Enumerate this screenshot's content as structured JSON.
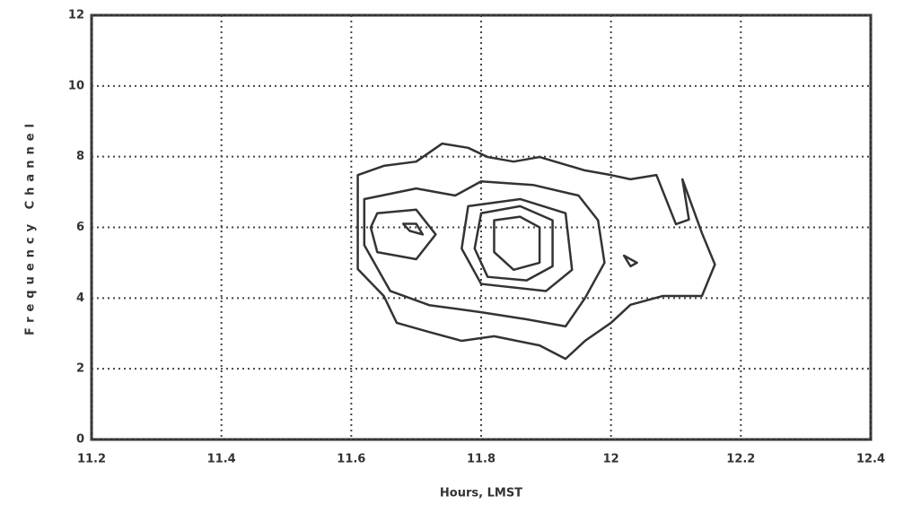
{
  "chart_data": {
    "type": "contour",
    "xlabel": "Hours, LMST",
    "ylabel": "Frequency Channel",
    "xlim": [
      11.2,
      12.4
    ],
    "xticks": [
      11.2,
      11.4,
      11.6,
      11.8,
      12,
      12.2,
      12.4
    ],
    "ylim": [
      0,
      12
    ],
    "yticks": [
      0,
      2,
      4,
      6,
      8,
      10,
      12
    ],
    "grid": true,
    "color": "#333333",
    "contours": [
      {
        "x": [
          11.61,
          11.65,
          11.7,
          11.74,
          11.78,
          11.81,
          11.85,
          11.89,
          11.96,
          12.0,
          12.03,
          12.07,
          12.1,
          12.12,
          12.11,
          12.14,
          12.16,
          12.14,
          12.08,
          12.03,
          12.0,
          11.96,
          11.93,
          11.89,
          11.82,
          11.77,
          11.72,
          11.67,
          11.65,
          11.61
        ],
        "y": [
          7.48,
          7.74,
          7.86,
          8.37,
          8.25,
          7.99,
          7.86,
          7.99,
          7.61,
          7.48,
          7.36,
          7.48,
          6.09,
          6.22,
          7.36,
          5.84,
          4.95,
          4.06,
          4.06,
          3.81,
          3.3,
          2.79,
          2.28,
          2.66,
          2.92,
          2.79,
          3.04,
          3.3,
          4.06,
          4.82
        ]
      },
      {
        "x": [
          11.62,
          11.7,
          11.76,
          11.8,
          11.88,
          11.95,
          11.98,
          11.99,
          11.96,
          11.93,
          11.87,
          11.8,
          11.72,
          11.66,
          11.62
        ],
        "y": [
          6.8,
          7.1,
          6.9,
          7.3,
          7.2,
          6.9,
          6.2,
          5.0,
          4.0,
          3.2,
          3.4,
          3.6,
          3.8,
          4.2,
          5.5
        ]
      },
      {
        "x": [
          11.64,
          11.7,
          11.73,
          11.7,
          11.64,
          11.63
        ],
        "y": [
          6.4,
          6.5,
          5.8,
          5.1,
          5.3,
          6.0
        ]
      },
      {
        "x": [
          11.68,
          11.7,
          11.71,
          11.69
        ],
        "y": [
          6.1,
          6.1,
          5.8,
          5.9
        ]
      },
      {
        "x": [
          11.78,
          11.86,
          11.93,
          11.94,
          11.9,
          11.8,
          11.77
        ],
        "y": [
          6.6,
          6.8,
          6.4,
          4.8,
          4.2,
          4.4,
          5.4
        ]
      },
      {
        "x": [
          11.8,
          11.86,
          11.91,
          11.91,
          11.87,
          11.81,
          11.79
        ],
        "y": [
          6.4,
          6.6,
          6.2,
          4.9,
          4.5,
          4.6,
          5.4
        ]
      },
      {
        "x": [
          11.82,
          11.86,
          11.89,
          11.89,
          11.85,
          11.82
        ],
        "y": [
          6.2,
          6.3,
          6.0,
          5.0,
          4.8,
          5.3
        ]
      },
      {
        "x": [
          12.02,
          12.04,
          12.03
        ],
        "y": [
          5.2,
          5.0,
          4.9
        ]
      }
    ]
  }
}
